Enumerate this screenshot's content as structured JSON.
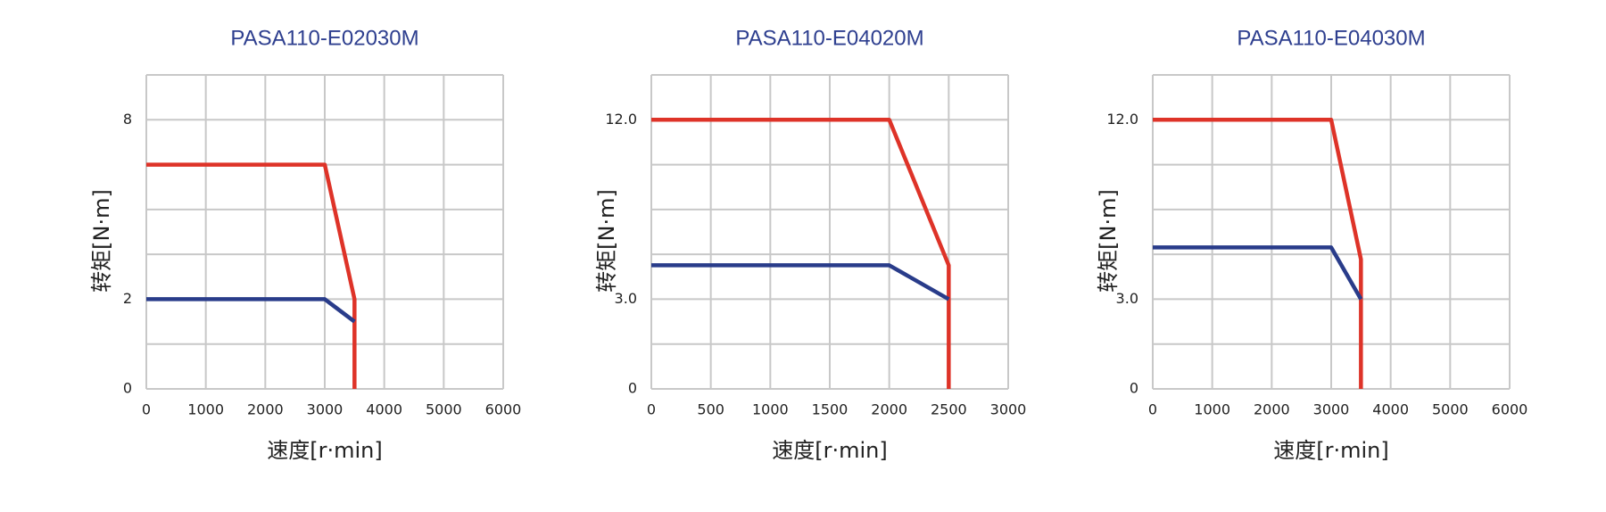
{
  "chart_data": [
    {
      "type": "line",
      "title": "PASA110-E02030M",
      "xlabel": "速度[r·min]",
      "ylabel": "转矩[N·m]",
      "xlim": [
        0,
        6000
      ],
      "xticks": [
        0,
        1000,
        2000,
        3000,
        4000,
        5000,
        6000
      ],
      "ylim": [
        0,
        9.5
      ],
      "yticks": [
        0,
        2,
        8
      ],
      "ygrid": [
        0,
        1,
        2,
        3.5,
        5,
        6.5,
        8,
        9.5
      ],
      "grid": true,
      "series": [
        {
          "color": "#de3328",
          "x": [
            0,
            3000,
            3500,
            3500
          ],
          "values": [
            6.5,
            6.5,
            2,
            0
          ]
        },
        {
          "color": "#293c8a",
          "x": [
            0,
            3000,
            3500
          ],
          "values": [
            2,
            2,
            1.5
          ]
        }
      ]
    },
    {
      "type": "line",
      "title": "PASA110-E04020M",
      "xlabel": "速度[r·min]",
      "ylabel": "转矩[N·m]",
      "xlim": [
        0,
        3000
      ],
      "xticks": [
        0,
        500,
        1000,
        1500,
        2000,
        2500,
        3000
      ],
      "ylim": [
        0,
        14.25
      ],
      "yticks": [
        0,
        {
          "value": 3,
          "label": "3.0"
        },
        {
          "value": 12,
          "label": "12.0"
        }
      ],
      "ygrid": [
        0,
        1.5,
        3,
        5.25,
        7.5,
        9.75,
        12,
        14.25
      ],
      "grid": true,
      "series": [
        {
          "color": "#de3328",
          "x": [
            0,
            2000,
            2500,
            2500
          ],
          "values": [
            12,
            12,
            4.7,
            0
          ]
        },
        {
          "color": "#293c8a",
          "x": [
            0,
            2000,
            2500
          ],
          "values": [
            4.7,
            4.7,
            3
          ]
        }
      ]
    },
    {
      "type": "line",
      "title": "PASA110-E04030M",
      "xlabel": "速度[r·min]",
      "ylabel": "转矩[N·m]",
      "xlim": [
        0,
        6000
      ],
      "xticks": [
        0,
        1000,
        2000,
        3000,
        4000,
        5000,
        6000
      ],
      "ylim": [
        0,
        14.25
      ],
      "yticks": [
        0,
        {
          "value": 3,
          "label": "3.0"
        },
        {
          "value": 12,
          "label": "12.0"
        }
      ],
      "ygrid": [
        0,
        1.5,
        3,
        5.25,
        7.5,
        9.75,
        12,
        14.25
      ],
      "grid": true,
      "series": [
        {
          "color": "#de3328",
          "x": [
            0,
            3000,
            3500,
            3500
          ],
          "values": [
            12,
            12,
            5,
            0
          ]
        },
        {
          "color": "#293c8a",
          "x": [
            0,
            3000,
            3500
          ],
          "values": [
            5.6,
            5.6,
            3
          ]
        }
      ]
    }
  ]
}
